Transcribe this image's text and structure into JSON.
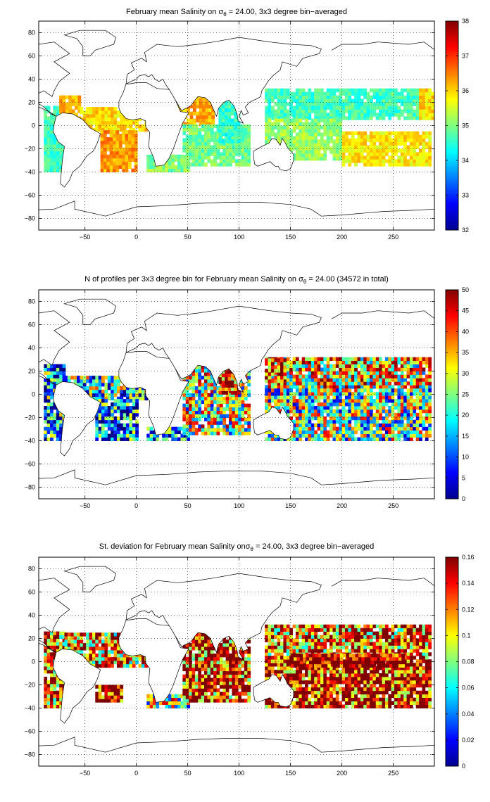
{
  "chart_data": [
    {
      "type": "heatmap",
      "title_main": "February mean Salinity on ",
      "title_sigma": "σ",
      "title_sub": "θ",
      "title_rest": " = 24.00, 3x3 degree bin−averaged",
      "xlim": [
        -95,
        290
      ],
      "ylim": [
        -90,
        90
      ],
      "xticks": [
        -50,
        0,
        50,
        100,
        150,
        200,
        250
      ],
      "yticks": [
        -80,
        -60,
        -40,
        -20,
        0,
        20,
        40,
        60,
        80
      ],
      "grid": true,
      "colorbar": {
        "min": 32,
        "max": 38,
        "ticks": [
          32,
          33,
          34,
          35,
          36,
          37,
          38
        ]
      },
      "regions": [
        {
          "x0": -90,
          "x1": -70,
          "y0": -40,
          "y1": 15,
          "value": 34.6
        },
        {
          "x0": -75,
          "x1": -55,
          "y0": 5,
          "y1": 25,
          "value": 36.2
        },
        {
          "x0": -55,
          "x1": 10,
          "y0": -5,
          "y1": 15,
          "value": 35.9
        },
        {
          "x0": -35,
          "x1": 0,
          "y0": -40,
          "y1": -5,
          "value": 36.3
        },
        {
          "x0": 10,
          "x1": 50,
          "y0": -40,
          "y1": -25,
          "value": 35.0
        },
        {
          "x0": 40,
          "x1": 75,
          "y0": 0,
          "y1": 25,
          "value": 36.2
        },
        {
          "x0": 45,
          "x1": 110,
          "y0": -35,
          "y1": 0,
          "value": 34.9
        },
        {
          "x0": 80,
          "x1": 100,
          "y0": -15,
          "y1": 20,
          "value": 34.5
        },
        {
          "x0": 125,
          "x1": 285,
          "y0": 5,
          "y1": 30,
          "value": 34.6
        },
        {
          "x0": 125,
          "x1": 200,
          "y0": -30,
          "y1": 5,
          "value": 35.1
        },
        {
          "x0": 200,
          "x1": 285,
          "y0": -35,
          "y1": -5,
          "value": 35.8
        },
        {
          "x0": 275,
          "x1": 290,
          "y0": 5,
          "y1": 30,
          "value": 35.9
        }
      ]
    },
    {
      "type": "heatmap",
      "title_main": "N of profiles per 3x3 degree bin for February mean Salinity on ",
      "title_sigma": "σ",
      "title_sub": "θ",
      "title_rest": " = 24.00 (34572 in total)",
      "xlim": [
        -95,
        290
      ],
      "ylim": [
        -90,
        90
      ],
      "xticks": [
        -50,
        0,
        50,
        100,
        150,
        200,
        250
      ],
      "yticks": [
        -80,
        -60,
        -40,
        -20,
        0,
        20,
        40,
        60,
        80
      ],
      "grid": true,
      "colorbar": {
        "min": 0,
        "max": 50,
        "ticks": [
          0,
          5,
          10,
          15,
          20,
          25,
          30,
          35,
          40,
          45,
          50
        ]
      },
      "regions": [
        {
          "x0": -90,
          "x1": -70,
          "y0": -40,
          "y1": 25,
          "value": 12
        },
        {
          "x0": -70,
          "x1": 10,
          "y0": -5,
          "y1": 15,
          "value": 18
        },
        {
          "x0": -40,
          "x1": 0,
          "y0": -40,
          "y1": -5,
          "value": 10
        },
        {
          "x0": 10,
          "x1": 50,
          "y0": -40,
          "y1": -30,
          "value": 8
        },
        {
          "x0": 45,
          "x1": 110,
          "y0": -35,
          "y1": 25,
          "value": 26
        },
        {
          "x0": 80,
          "x1": 100,
          "y0": 0,
          "y1": 25,
          "value": 42
        },
        {
          "x0": 125,
          "x1": 285,
          "y0": 5,
          "y1": 30,
          "value": 30
        },
        {
          "x0": 125,
          "x1": 285,
          "y0": -40,
          "y1": 5,
          "value": 22
        },
        {
          "x0": 125,
          "x1": 145,
          "y0": 10,
          "y1": 30,
          "value": 44
        }
      ]
    },
    {
      "type": "heatmap",
      "title_main": "St. deviation for February mean Salinity on",
      "title_sigma": "σ",
      "title_sub": "θ",
      "title_rest": " = 24.00, 3x3 degree bin−averaged",
      "xlim": [
        -95,
        290
      ],
      "ylim": [
        -90,
        90
      ],
      "xticks": [
        -50,
        0,
        50,
        100,
        150,
        200,
        250
      ],
      "yticks": [
        -80,
        -60,
        -40,
        -20,
        0,
        20,
        40,
        60,
        80
      ],
      "grid": true,
      "colorbar": {
        "min": 0,
        "max": 0.16,
        "ticks": [
          0,
          0.02,
          0.04,
          0.06,
          0.08,
          0.1,
          0.12,
          0.14,
          0.16
        ]
      },
      "regions": [
        {
          "x0": -90,
          "x1": -70,
          "y0": -40,
          "y1": 25,
          "value": 0.12
        },
        {
          "x0": -70,
          "x1": 10,
          "y0": -5,
          "y1": 25,
          "value": 0.11
        },
        {
          "x0": -40,
          "x1": -15,
          "y0": -35,
          "y1": -20,
          "value": 0.15
        },
        {
          "x0": 10,
          "x1": 50,
          "y0": -40,
          "y1": -30,
          "value": 0.08
        },
        {
          "x0": 45,
          "x1": 110,
          "y0": -35,
          "y1": 25,
          "value": 0.13
        },
        {
          "x0": 125,
          "x1": 285,
          "y0": 5,
          "y1": 30,
          "value": 0.12
        },
        {
          "x0": 125,
          "x1": 285,
          "y0": -40,
          "y1": 5,
          "value": 0.14
        },
        {
          "x0": 150,
          "x1": 260,
          "y0": -5,
          "y1": 5,
          "value": 0.16
        }
      ]
    }
  ]
}
